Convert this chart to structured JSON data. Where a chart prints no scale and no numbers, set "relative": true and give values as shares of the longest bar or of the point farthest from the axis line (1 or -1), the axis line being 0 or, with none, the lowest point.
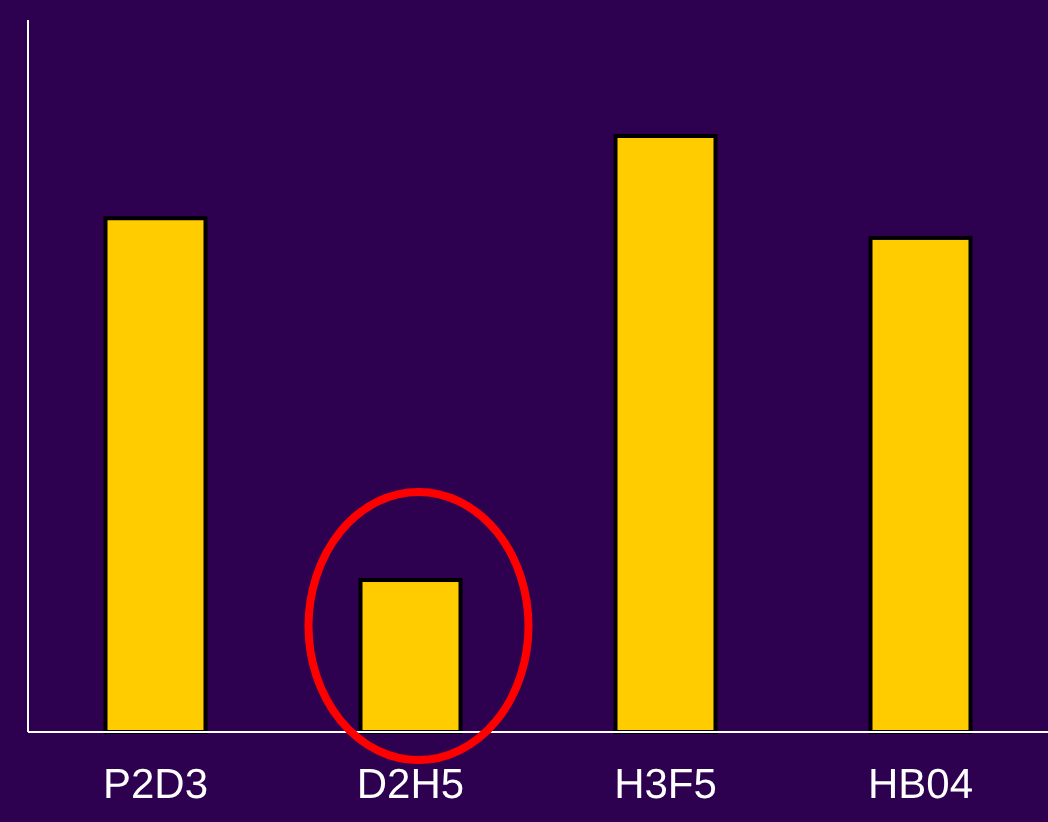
{
  "chart_data": {
    "type": "bar",
    "relative": true,
    "categories": [
      "P2D3",
      "D2H5",
      "H3F5",
      "HB04"
    ],
    "values": [
      0.862,
      0.255,
      1,
      0.829
    ],
    "color": "#ffcc00"
  }
}
